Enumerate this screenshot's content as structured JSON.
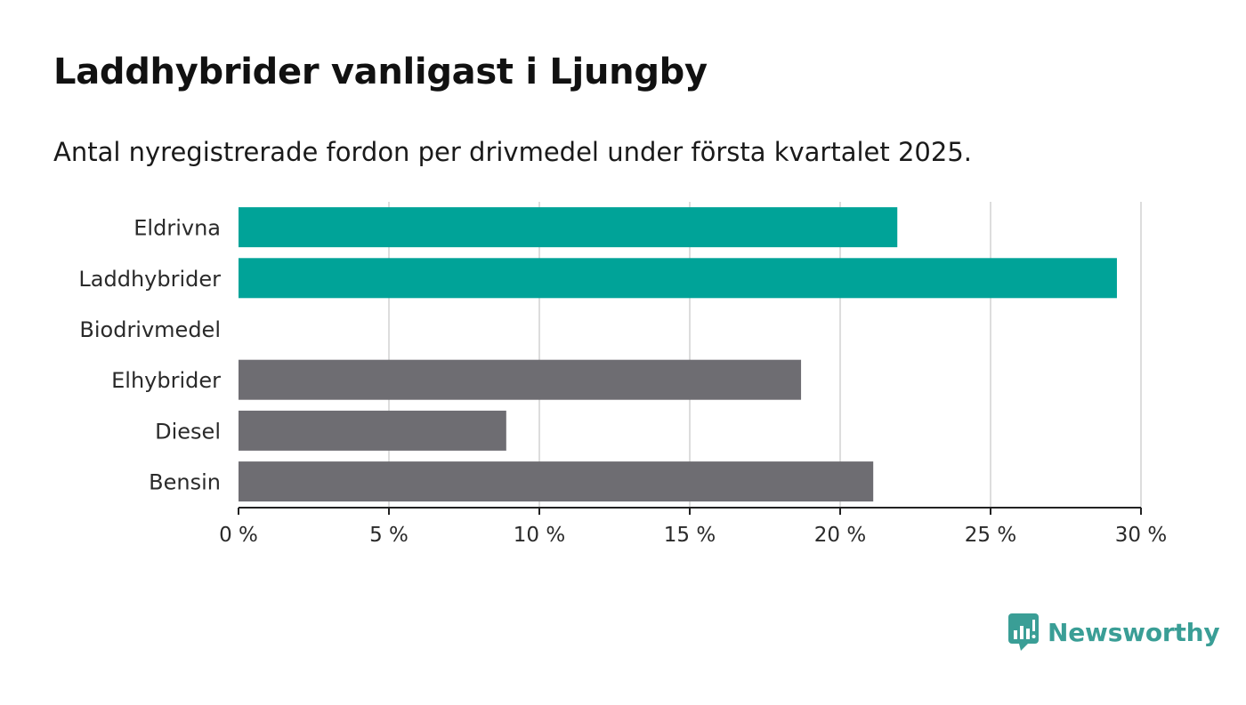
{
  "title": "Laddhybrider vanligast i Ljungby",
  "subtitle": "Antal nyregistrerade fordon per drivmedel under första kvartalet 2025.",
  "brand": {
    "name": "Newsworthy",
    "icon": "newsworthy-logo-icon"
  },
  "colors": {
    "highlight": "#00a398",
    "default": "#6e6d72",
    "grid": "#dddddd",
    "axis": "#222222"
  },
  "chart_data": {
    "type": "bar",
    "orientation": "horizontal",
    "categories": [
      "Eldrivna",
      "Laddhybrider",
      "Biodrivmedel",
      "Elhybrider",
      "Diesel",
      "Bensin"
    ],
    "values": [
      21.9,
      29.2,
      0,
      18.7,
      8.9,
      21.1
    ],
    "highlighted": [
      true,
      true,
      false,
      false,
      false,
      false
    ],
    "xlim": [
      0,
      30
    ],
    "xticks": [
      0,
      5,
      10,
      15,
      20,
      25,
      30
    ],
    "xtick_labels": [
      "0 %",
      "5 %",
      "10 %",
      "15 %",
      "20 %",
      "25 %",
      "30 %"
    ],
    "unit": "%",
    "grid": "vertical",
    "legend": "none"
  }
}
